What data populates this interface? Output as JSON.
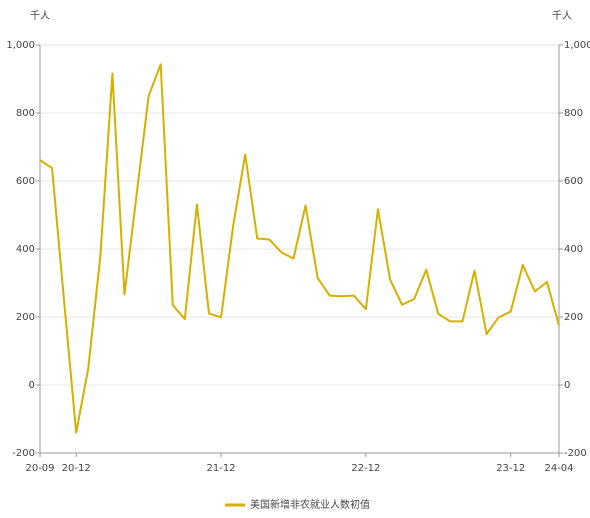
{
  "chart_data": {
    "type": "line",
    "y_unit": "千人",
    "y2_unit": "千人",
    "categories": [
      "20-09",
      null,
      null,
      "20-12",
      null,
      null,
      null,
      null,
      null,
      null,
      null,
      null,
      null,
      null,
      null,
      "21-12",
      null,
      null,
      null,
      null,
      null,
      null,
      null,
      null,
      null,
      null,
      null,
      "22-12",
      null,
      null,
      null,
      null,
      null,
      null,
      null,
      null,
      null,
      null,
      null,
      "23-12",
      null,
      null,
      null,
      "24-04"
    ],
    "series": [
      {
        "name": "美国新增非农就业人数初值",
        "color": "#d4b000",
        "values": [
          661,
          638,
          245,
          -140,
          49,
          379,
          916,
          266,
          559,
          850,
          943,
          235,
          194,
          531,
          210,
          199,
          467,
          678,
          431,
          428,
          390,
          372,
          528,
          315,
          263,
          261,
          263,
          223,
          517,
          311,
          236,
          253,
          339,
          209,
          187,
          187,
          336,
          150,
          199,
          216,
          353,
          275,
          303,
          175
        ]
      }
    ],
    "ylim": [
      -200,
      1000
    ],
    "yticks": [
      -200,
      0,
      200,
      400,
      600,
      800,
      {
        "value": 1000,
        "label": "1,000"
      }
    ],
    "y2lim": [
      -200,
      1000
    ],
    "y2ticks": [
      -200,
      0,
      200,
      400,
      600,
      800,
      {
        "value": 1000,
        "label": "1,000"
      }
    ],
    "grid": true,
    "legend": "bottom"
  }
}
